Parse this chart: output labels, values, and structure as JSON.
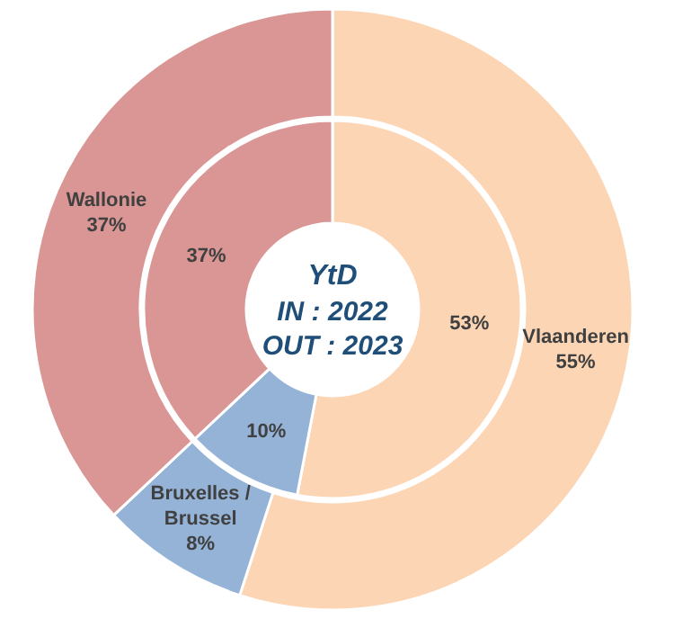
{
  "chart_data": {
    "type": "donut",
    "title": "YtD",
    "annotations": [
      "IN : 2022",
      "OUT : 2023"
    ],
    "categories": [
      "Vlaanderen",
      "Bruxelles / Brussel",
      "Wallonie"
    ],
    "colors": [
      "#fcd5b5",
      "#95b3d7",
      "#d99694"
    ],
    "series": [
      {
        "values": [
          53,
          10,
          37
        ],
        "value_labels": [
          "53%",
          "10%",
          "37%"
        ]
      },
      {
        "values": [
          55,
          8,
          37
        ],
        "value_labels": [
          "55%",
          "8%",
          "37%"
        ]
      }
    ]
  }
}
